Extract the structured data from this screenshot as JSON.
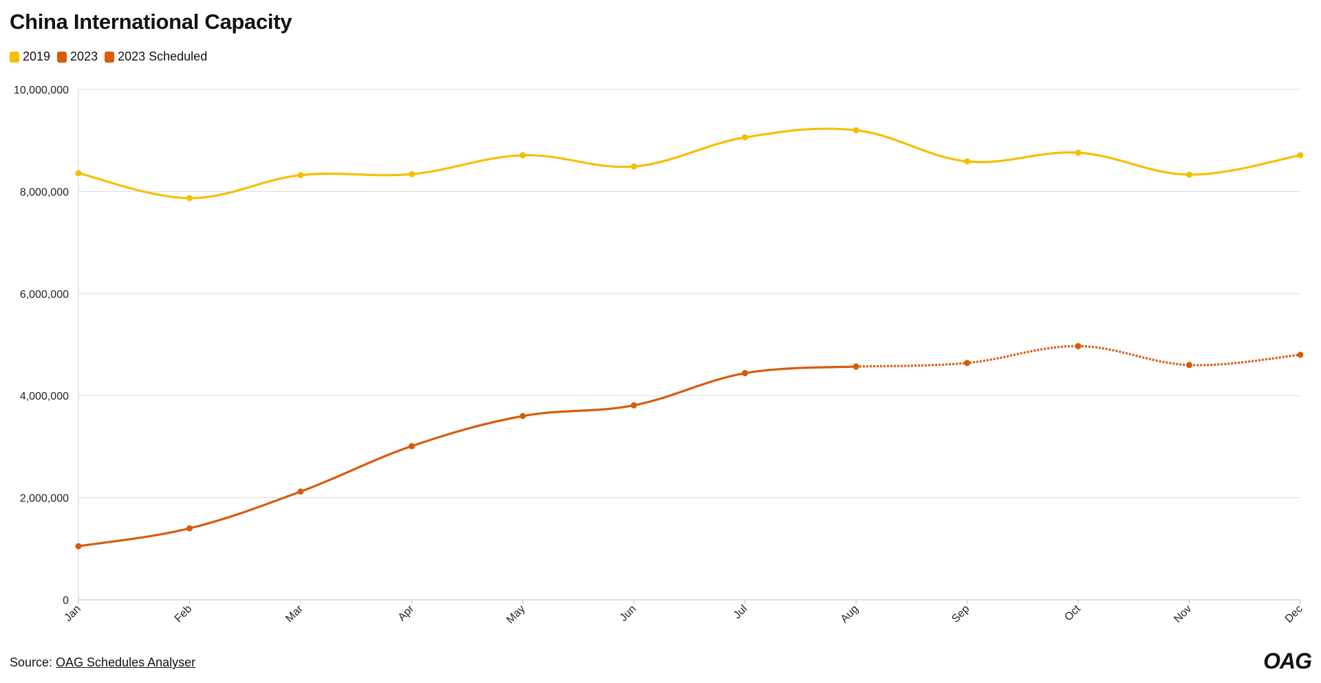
{
  "chart_data": {
    "type": "line",
    "title": "China International Capacity",
    "categories": [
      "Jan",
      "Feb",
      "Mar",
      "Apr",
      "May",
      "Jun",
      "Jul",
      "Aug",
      "Sep",
      "Oct",
      "Nov",
      "Dec"
    ],
    "series": [
      {
        "name": "2019",
        "color": "#F7BE00",
        "values": [
          8360000,
          7870000,
          8320000,
          8340000,
          8710000,
          8490000,
          9060000,
          9200000,
          8590000,
          8760000,
          8330000,
          8710000
        ]
      },
      {
        "name": "2023",
        "color": "#D85A0A",
        "values": [
          1050000,
          1400000,
          2120000,
          3010000,
          3600000,
          3810000,
          4440000,
          4570000,
          null,
          null,
          null,
          null
        ]
      },
      {
        "name": "2023 Scheduled",
        "color": "#D85A0A",
        "dashed": true,
        "values": [
          null,
          null,
          null,
          null,
          null,
          null,
          null,
          4570000,
          4640000,
          4970000,
          4600000,
          4800000
        ]
      }
    ],
    "ylim": [
      0,
      10000000
    ],
    "yticks": [
      0,
      2000000,
      4000000,
      6000000,
      8000000,
      10000000
    ],
    "ytick_labels": [
      "0",
      "2,000,000",
      "4,000,000",
      "6,000,000",
      "8,000,000",
      "10,000,000"
    ],
    "grid": true,
    "legend": "top-left"
  },
  "footer": {
    "source_prefix": "Source: ",
    "source_link": "OAG Schedules Analyser"
  },
  "logo": "OAG"
}
